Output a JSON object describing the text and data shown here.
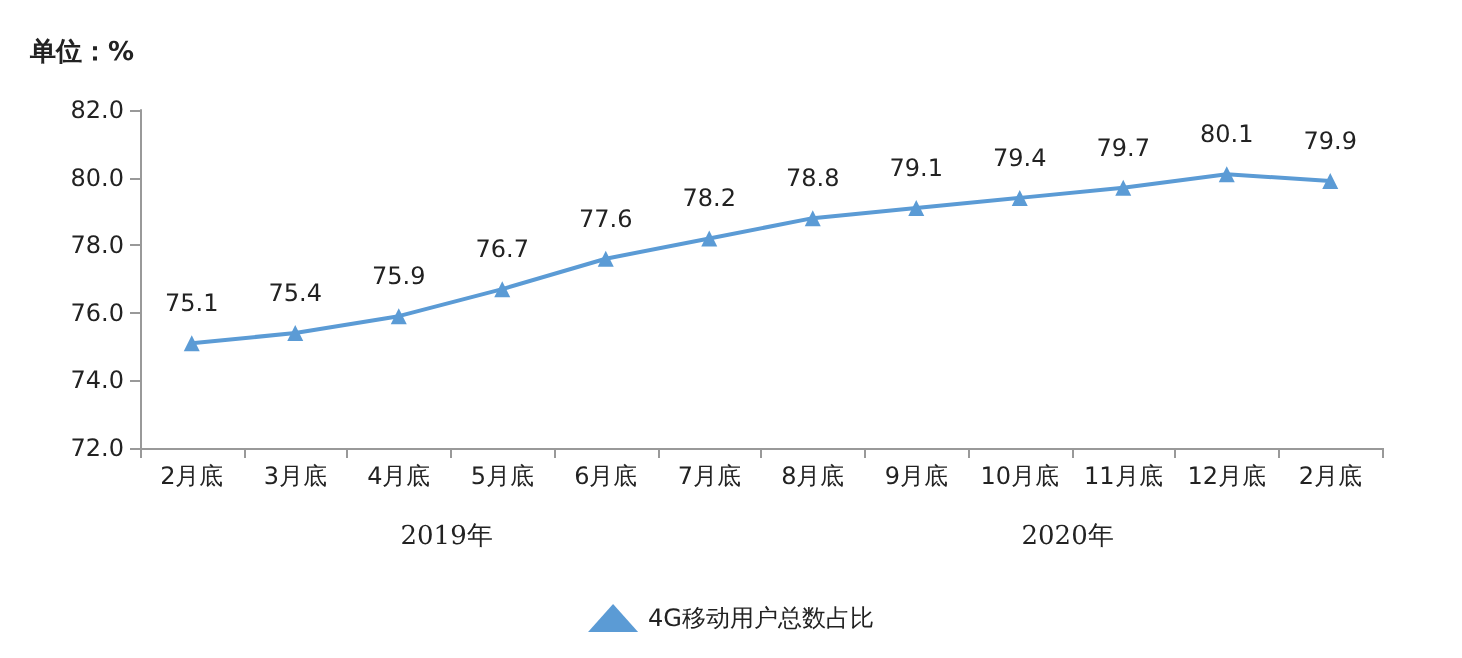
{
  "chart_data": {
    "type": "line",
    "ylabel": "单位：%",
    "categories": [
      "2月底",
      "3月底",
      "4月底",
      "5月底",
      "6月底",
      "7月底",
      "8月底",
      "9月底",
      "10月底",
      "11月底",
      "12月底",
      "2月底"
    ],
    "series": [
      {
        "name": "4G移动用户总数占比",
        "color": "#5b9bd5",
        "values": [
          75.1,
          75.4,
          75.9,
          76.7,
          77.6,
          78.2,
          78.8,
          79.1,
          79.4,
          79.7,
          80.1,
          79.9
        ]
      }
    ],
    "ylim": [
      72,
      82
    ],
    "yticks": [
      {
        "value": 72,
        "label": "72.0"
      },
      {
        "value": 74,
        "label": "74.0"
      },
      {
        "value": 76,
        "label": "76.0"
      },
      {
        "value": 78,
        "label": "78.0"
      },
      {
        "value": 80,
        "label": "80.0"
      },
      {
        "value": 82,
        "label": "82.0"
      }
    ],
    "annotations": [
      "2019年",
      "2020年"
    ],
    "data_labels": true,
    "grid": false,
    "legend": "bottom",
    "marker": "triangle",
    "line_style": "solid"
  }
}
